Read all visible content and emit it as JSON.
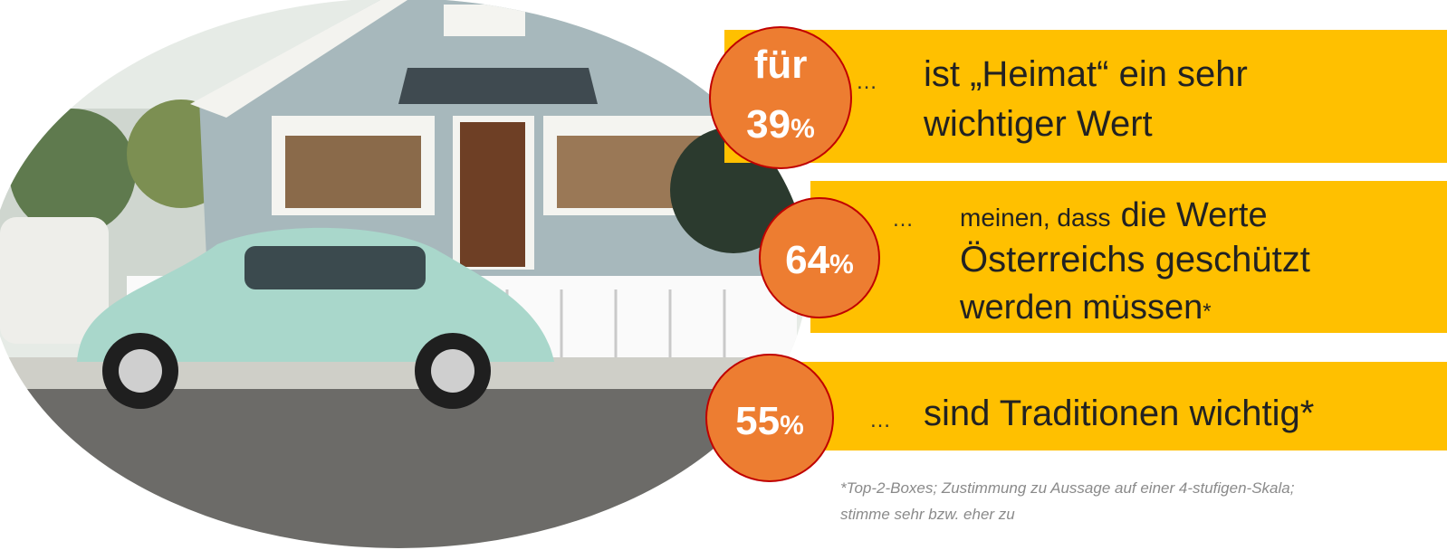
{
  "items": [
    {
      "prefix": "für",
      "value": "39",
      "unit": "%",
      "ellipsis": "…",
      "lines": [
        "ist „Heimat“ ein sehr",
        "wichtiger Wert"
      ]
    },
    {
      "value": "64",
      "unit": "%",
      "ellipsis": "…",
      "lines": [
        "meinen, dass",
        "die Werte",
        "Österreichs geschützt",
        "werden müssen",
        "*"
      ]
    },
    {
      "value": "55",
      "unit": "%",
      "ellipsis": "…",
      "lines": [
        "sind Traditionen wichtig*"
      ]
    }
  ],
  "footnote": [
    "*Top-2-Boxes; Zustimmung zu Aussage auf einer 4-stufigen-Skala;",
    "stimme sehr  bzw. eher zu"
  ]
}
